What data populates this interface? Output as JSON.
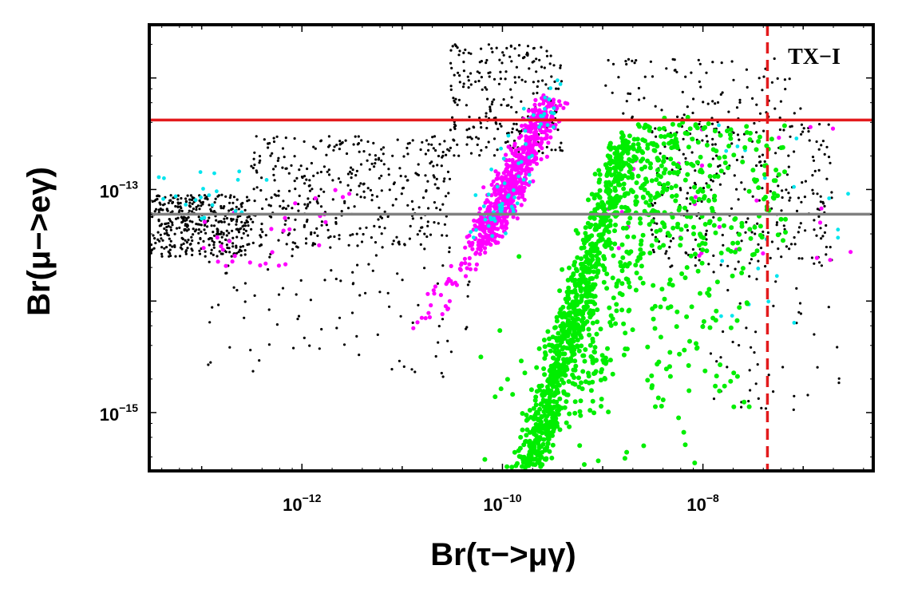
{
  "chart_data": {
    "type": "scatter",
    "title": "",
    "xlabel": "Br(τ−>μγ)",
    "ylabel": "Br(μ−>eγ)",
    "x_scale": "log",
    "y_scale": "log",
    "xlim": [
      3e-14,
      5e-07
    ],
    "ylim": [
      3e-16,
      3e-12
    ],
    "x_ticks": [
      {
        "value": 1e-12,
        "base": "10",
        "exp": "−12"
      },
      {
        "value": 1e-10,
        "base": "10",
        "exp": "−10"
      },
      {
        "value": 1e-08,
        "base": "10",
        "exp": "−8"
      }
    ],
    "y_ticks": [
      {
        "value": 1e-13,
        "base": "10",
        "exp": "−13"
      },
      {
        "value": 1e-15,
        "base": "10",
        "exp": "−15"
      }
    ],
    "grid": false,
    "annotation": "TX−I",
    "reference_lines": [
      {
        "orientation": "horizontal",
        "value": 4.2e-13,
        "color": "#e31a1c",
        "style": "solid"
      },
      {
        "orientation": "horizontal",
        "value": 6e-14,
        "color": "#808080",
        "style": "solid"
      },
      {
        "orientation": "vertical",
        "value": 4.4e-08,
        "color": "#e31a1c",
        "style": "dashed"
      }
    ],
    "series": [
      {
        "color": "#000000",
        "marker_size": 1.6,
        "clusters": [
          {
            "count": 380,
            "x_range": [
              3e-14,
              3e-13
            ],
            "y_range": [
              2.5e-14,
              9e-14
            ]
          },
          {
            "count": 380,
            "x_range": [
              3e-13,
              3e-11
            ],
            "y_range": [
              3e-14,
              3e-13
            ]
          },
          {
            "count": 250,
            "x_range": [
              3e-11,
              4e-10
            ],
            "y_range": [
              2e-13,
              2e-12
            ]
          },
          {
            "count": 300,
            "x_range": [
              3e-09,
              2e-07
            ],
            "y_range": [
              2e-14,
              4e-13
            ]
          },
          {
            "count": 90,
            "x_range": [
              1e-09,
              1e-07
            ],
            "y_range": [
              4e-13,
              1.5e-12
            ]
          },
          {
            "count": 90,
            "x_range": [
              1e-13,
              5e-11
            ],
            "y_range": [
              2e-15,
              3e-14
            ]
          },
          {
            "count": 50,
            "x_range": [
              1e-08,
              3e-07
            ],
            "y_range": [
              1e-15,
              2e-14
            ]
          }
        ]
      },
      {
        "color": "#ff00ff",
        "marker_size": 2.6,
        "clusters": [
          {
            "count": 750,
            "band": true,
            "x_start": 6e-11,
            "y_start": 3e-14,
            "x_end": 3e-10,
            "y_end": 6e-13,
            "spread": 0.08
          },
          {
            "count": 40,
            "band": true,
            "x_start": 1.5e-11,
            "y_start": 6e-15,
            "x_end": 6e-11,
            "y_end": 3e-14,
            "spread": 0.07
          },
          {
            "count": 30,
            "x_range": [
              1e-13,
              3e-12
            ],
            "y_range": [
              2e-14,
              1e-13
            ]
          },
          {
            "count": 30,
            "x_range": [
              1e-09,
              3e-07
            ],
            "y_range": [
              2e-14,
              4e-13
            ]
          }
        ]
      },
      {
        "color": "#00e5ee",
        "marker_size": 2.4,
        "clusters": [
          {
            "count": 70,
            "band": true,
            "x_start": 7e-11,
            "y_start": 4e-14,
            "x_end": 3e-10,
            "y_end": 8e-13,
            "spread": 0.1
          },
          {
            "count": 20,
            "x_range": [
              3e-14,
              5e-13
            ],
            "y_range": [
              5e-14,
              1.5e-13
            ]
          },
          {
            "count": 20,
            "x_range": [
              1e-08,
              3e-07
            ],
            "y_range": [
              5e-15,
              5e-13
            ]
          }
        ]
      },
      {
        "color": "#00ee00",
        "marker_size": 3.0,
        "clusters": [
          {
            "count": 900,
            "band": true,
            "x_start": 1.8e-10,
            "y_start": 3e-16,
            "x_end": 1.8e-09,
            "y_end": 3e-13,
            "spread": 0.09
          },
          {
            "count": 220,
            "band": true,
            "x_start": 5e-10,
            "y_start": 1e-15,
            "x_end": 5e-09,
            "y_end": 4e-13,
            "spread": 0.15
          },
          {
            "count": 220,
            "x_range": [
              2e-09,
              7e-08
            ],
            "y_range": [
              2.5e-14,
              4e-13
            ]
          },
          {
            "count": 80,
            "x_range": [
              5e-11,
              1e-08
            ],
            "y_range": [
              3e-16,
              3e-14
            ]
          },
          {
            "count": 60,
            "x_range": [
              3e-09,
              3e-08
            ],
            "y_range": [
              1e-15,
              2e-14
            ]
          }
        ]
      }
    ]
  }
}
